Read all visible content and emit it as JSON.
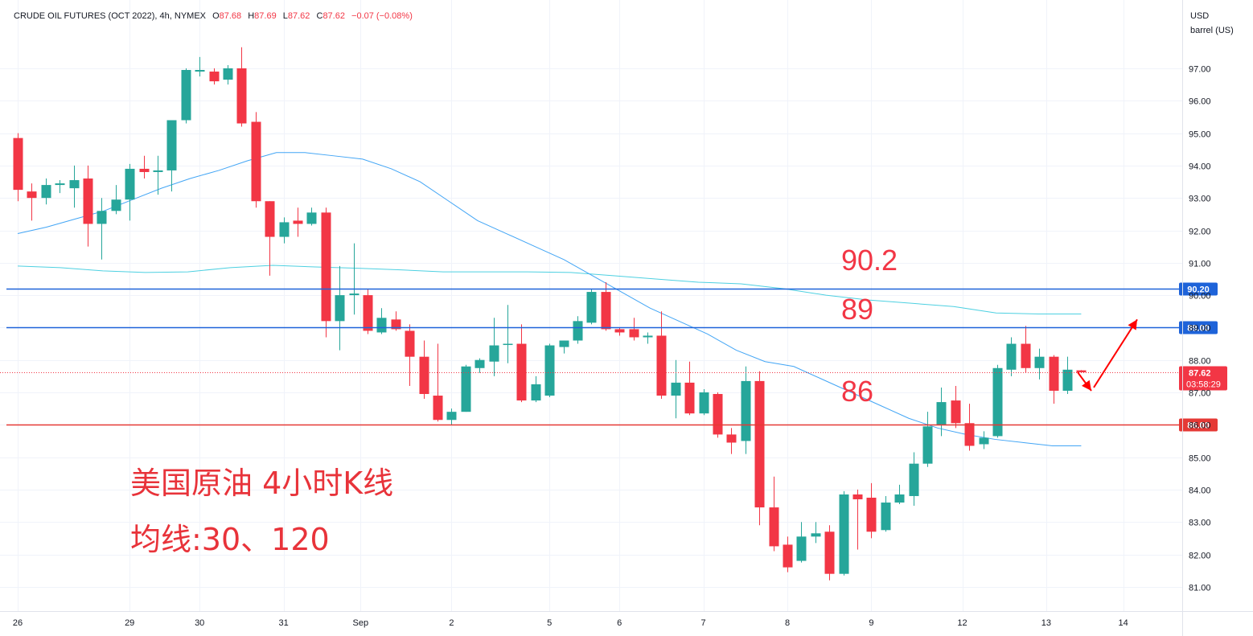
{
  "header": {
    "symbol": "CRUDE OIL FUTURES (OCT 2022), 4h, NYMEX",
    "o_label": "O",
    "o_value": "87.68",
    "h_label": "H",
    "h_value": "87.69",
    "l_label": "L",
    "l_value": "87.62",
    "c_label": "C",
    "c_value": "87.62",
    "change": "−0.07 (−0.08%)"
  },
  "axis": {
    "currency": "USD",
    "unit": "barrel (US)",
    "countdown": "03:58:29"
  },
  "annotations": {
    "label_90_2": "90.2",
    "label_89": "89",
    "label_86": "86",
    "note_line1": "美国原油 4小时K线",
    "note_line2": "均线:30、120"
  },
  "colors": {
    "up": "#26a69a",
    "down": "#f23645",
    "ma_fast": "#42a5f5",
    "ma_slow": "#4dd0e1",
    "hline_blue": "#1e63d9",
    "hline_red": "#e53935",
    "arrow": "#ff0000"
  },
  "chart_data": {
    "type": "candlestick",
    "title": "CRUDE OIL FUTURES (OCT 2022), 4h, NYMEX",
    "ylabel": "USD barrel (US)",
    "ylim": [
      80.4,
      99.0
    ],
    "yticks": [
      81,
      82,
      83,
      84,
      85,
      86,
      87,
      88,
      89,
      90,
      91,
      92,
      93,
      94,
      95,
      96,
      97
    ],
    "xticks": [
      "26",
      "29",
      "30",
      "31",
      "Sep",
      "2",
      "5",
      "6",
      "7",
      "8",
      "9",
      "12",
      "13",
      "14"
    ],
    "last_price": 87.62,
    "horizontal_lines": [
      {
        "price": 90.2,
        "label": "90.20",
        "color": "blue"
      },
      {
        "price": 89.0,
        "label": "89.00",
        "color": "blue"
      },
      {
        "price": 86.0,
        "label": "86.00",
        "color": "red"
      }
    ],
    "candles": [
      {
        "o": 94.85,
        "h": 95.0,
        "l": 92.9,
        "c": 93.25
      },
      {
        "o": 93.2,
        "h": 93.45,
        "l": 92.3,
        "c": 93.0
      },
      {
        "o": 93.0,
        "h": 93.6,
        "l": 92.8,
        "c": 93.4
      },
      {
        "o": 93.4,
        "h": 93.55,
        "l": 93.15,
        "c": 93.45
      },
      {
        "o": 93.3,
        "h": 94.0,
        "l": 92.7,
        "c": 93.55
      },
      {
        "o": 93.6,
        "h": 94.0,
        "l": 91.5,
        "c": 92.2
      },
      {
        "o": 92.2,
        "h": 93.0,
        "l": 91.1,
        "c": 92.6
      },
      {
        "o": 92.6,
        "h": 93.4,
        "l": 92.5,
        "c": 92.95
      },
      {
        "o": 92.95,
        "h": 94.05,
        "l": 92.3,
        "c": 93.9
      },
      {
        "o": 93.9,
        "h": 94.3,
        "l": 93.6,
        "c": 93.8
      },
      {
        "o": 93.8,
        "h": 94.3,
        "l": 93.1,
        "c": 93.85
      },
      {
        "o": 93.85,
        "h": 95.4,
        "l": 93.2,
        "c": 95.4
      },
      {
        "o": 95.4,
        "h": 97.0,
        "l": 95.3,
        "c": 96.95
      },
      {
        "o": 96.9,
        "h": 97.35,
        "l": 96.75,
        "c": 96.95
      },
      {
        "o": 96.9,
        "h": 97.0,
        "l": 96.5,
        "c": 96.6
      },
      {
        "o": 96.65,
        "h": 97.1,
        "l": 96.5,
        "c": 97.0
      },
      {
        "o": 97.0,
        "h": 97.65,
        "l": 95.2,
        "c": 95.3
      },
      {
        "o": 95.35,
        "h": 95.65,
        "l": 92.7,
        "c": 92.9
      },
      {
        "o": 92.9,
        "h": 92.9,
        "l": 90.6,
        "c": 91.8
      },
      {
        "o": 91.8,
        "h": 92.4,
        "l": 91.6,
        "c": 92.25
      },
      {
        "o": 92.3,
        "h": 92.7,
        "l": 91.8,
        "c": 92.2
      },
      {
        "o": 92.2,
        "h": 92.7,
        "l": 92.15,
        "c": 92.55
      },
      {
        "o": 92.55,
        "h": 92.7,
        "l": 88.7,
        "c": 89.2
      },
      {
        "o": 89.2,
        "h": 90.9,
        "l": 88.3,
        "c": 90.0
      },
      {
        "o": 90.0,
        "h": 91.6,
        "l": 89.4,
        "c": 90.05
      },
      {
        "o": 90.0,
        "h": 90.2,
        "l": 88.8,
        "c": 88.9
      },
      {
        "o": 88.85,
        "h": 89.6,
        "l": 88.8,
        "c": 89.3
      },
      {
        "o": 89.25,
        "h": 89.5,
        "l": 88.9,
        "c": 88.95
      },
      {
        "o": 88.9,
        "h": 89.1,
        "l": 87.2,
        "c": 88.1
      },
      {
        "o": 88.1,
        "h": 88.6,
        "l": 86.8,
        "c": 86.95
      },
      {
        "o": 86.9,
        "h": 88.5,
        "l": 86.1,
        "c": 86.15
      },
      {
        "o": 86.15,
        "h": 86.5,
        "l": 86.0,
        "c": 86.4
      },
      {
        "o": 86.4,
        "h": 87.85,
        "l": 86.4,
        "c": 87.8
      },
      {
        "o": 87.75,
        "h": 88.05,
        "l": 87.6,
        "c": 88.0
      },
      {
        "o": 87.95,
        "h": 89.3,
        "l": 87.5,
        "c": 88.45
      },
      {
        "o": 88.5,
        "h": 89.7,
        "l": 87.9,
        "c": 88.5
      },
      {
        "o": 88.5,
        "h": 89.1,
        "l": 86.7,
        "c": 86.75
      },
      {
        "o": 86.75,
        "h": 87.5,
        "l": 86.7,
        "c": 87.25
      },
      {
        "o": 86.9,
        "h": 88.5,
        "l": 86.85,
        "c": 88.45
      },
      {
        "o": 88.4,
        "h": 88.6,
        "l": 88.2,
        "c": 88.6
      },
      {
        "o": 88.6,
        "h": 89.35,
        "l": 88.5,
        "c": 89.2
      },
      {
        "o": 89.15,
        "h": 90.2,
        "l": 89.1,
        "c": 90.1
      },
      {
        "o": 90.1,
        "h": 90.4,
        "l": 88.9,
        "c": 88.95
      },
      {
        "o": 88.95,
        "h": 89.0,
        "l": 88.75,
        "c": 88.85
      },
      {
        "o": 88.95,
        "h": 89.3,
        "l": 88.6,
        "c": 88.7
      },
      {
        "o": 88.7,
        "h": 88.85,
        "l": 88.5,
        "c": 88.75
      },
      {
        "o": 88.75,
        "h": 89.5,
        "l": 86.8,
        "c": 86.9
      },
      {
        "o": 86.9,
        "h": 88.0,
        "l": 86.2,
        "c": 87.3
      },
      {
        "o": 87.3,
        "h": 87.95,
        "l": 86.3,
        "c": 86.35
      },
      {
        "o": 86.35,
        "h": 87.1,
        "l": 86.3,
        "c": 87.0
      },
      {
        "o": 86.95,
        "h": 87.0,
        "l": 85.6,
        "c": 85.7
      },
      {
        "o": 85.7,
        "h": 85.9,
        "l": 85.1,
        "c": 85.45
      },
      {
        "o": 85.5,
        "h": 87.8,
        "l": 85.1,
        "c": 87.35
      },
      {
        "o": 87.35,
        "h": 87.65,
        "l": 82.9,
        "c": 83.45
      },
      {
        "o": 83.45,
        "h": 84.4,
        "l": 82.1,
        "c": 82.25
      },
      {
        "o": 82.3,
        "h": 82.55,
        "l": 81.45,
        "c": 81.6
      },
      {
        "o": 81.8,
        "h": 83.0,
        "l": 81.75,
        "c": 82.55
      },
      {
        "o": 82.55,
        "h": 83.0,
        "l": 82.35,
        "c": 82.65
      },
      {
        "o": 82.7,
        "h": 82.9,
        "l": 81.2,
        "c": 81.4
      },
      {
        "o": 81.4,
        "h": 83.95,
        "l": 81.35,
        "c": 83.85
      },
      {
        "o": 83.85,
        "h": 84.0,
        "l": 82.15,
        "c": 83.7
      },
      {
        "o": 83.75,
        "h": 84.2,
        "l": 82.5,
        "c": 82.7
      },
      {
        "o": 82.75,
        "h": 83.8,
        "l": 82.7,
        "c": 83.6
      },
      {
        "o": 83.6,
        "h": 84.15,
        "l": 83.55,
        "c": 83.85
      },
      {
        "o": 83.8,
        "h": 85.15,
        "l": 83.5,
        "c": 84.8
      },
      {
        "o": 84.8,
        "h": 86.4,
        "l": 84.7,
        "c": 85.95
      },
      {
        "o": 86.0,
        "h": 87.15,
        "l": 85.65,
        "c": 86.7
      },
      {
        "o": 86.75,
        "h": 87.2,
        "l": 85.9,
        "c": 86.05
      },
      {
        "o": 86.05,
        "h": 86.65,
        "l": 85.2,
        "c": 85.35
      },
      {
        "o": 85.4,
        "h": 85.8,
        "l": 85.25,
        "c": 85.6
      },
      {
        "o": 85.65,
        "h": 87.85,
        "l": 85.6,
        "c": 87.75
      },
      {
        "o": 87.7,
        "h": 88.7,
        "l": 87.5,
        "c": 88.5
      },
      {
        "o": 88.5,
        "h": 89.05,
        "l": 87.6,
        "c": 87.75
      },
      {
        "o": 87.75,
        "h": 88.35,
        "l": 87.4,
        "c": 88.1
      },
      {
        "o": 88.1,
        "h": 88.15,
        "l": 86.65,
        "c": 87.05
      },
      {
        "o": 87.05,
        "h": 88.1,
        "l": 86.95,
        "c": 87.7
      },
      {
        "o": 87.68,
        "h": 87.69,
        "l": 87.62,
        "c": 87.62
      }
    ],
    "ma30": [
      91.9,
      92.1,
      92.35,
      92.6,
      92.95,
      93.3,
      93.6,
      93.85,
      94.15,
      94.4,
      94.4,
      94.3,
      94.2,
      93.9,
      93.5,
      92.9,
      92.3,
      91.9,
      91.5,
      91.1,
      90.6,
      90.1,
      89.6,
      89.2,
      88.8,
      88.3,
      87.95,
      87.8,
      87.4,
      87.0,
      86.6,
      86.2,
      85.9,
      85.7,
      85.55,
      85.45,
      85.35,
      85.35
    ],
    "ma120": [
      90.9,
      90.85,
      90.75,
      90.7,
      90.72,
      90.85,
      90.92,
      90.87,
      90.83,
      90.78,
      90.72,
      90.72,
      90.72,
      90.7,
      90.6,
      90.5,
      90.4,
      90.35,
      90.2,
      90.0,
      89.85,
      89.75,
      89.65,
      89.45,
      89.42,
      89.42
    ],
    "trend_arrows": [
      {
        "from": [
          87.62,
          87.62
        ],
        "to": [
          87.05,
          87.05
        ]
      },
      {
        "from": [
          87.15,
          87.15
        ],
        "to": [
          89.25,
          89.25
        ]
      }
    ]
  }
}
